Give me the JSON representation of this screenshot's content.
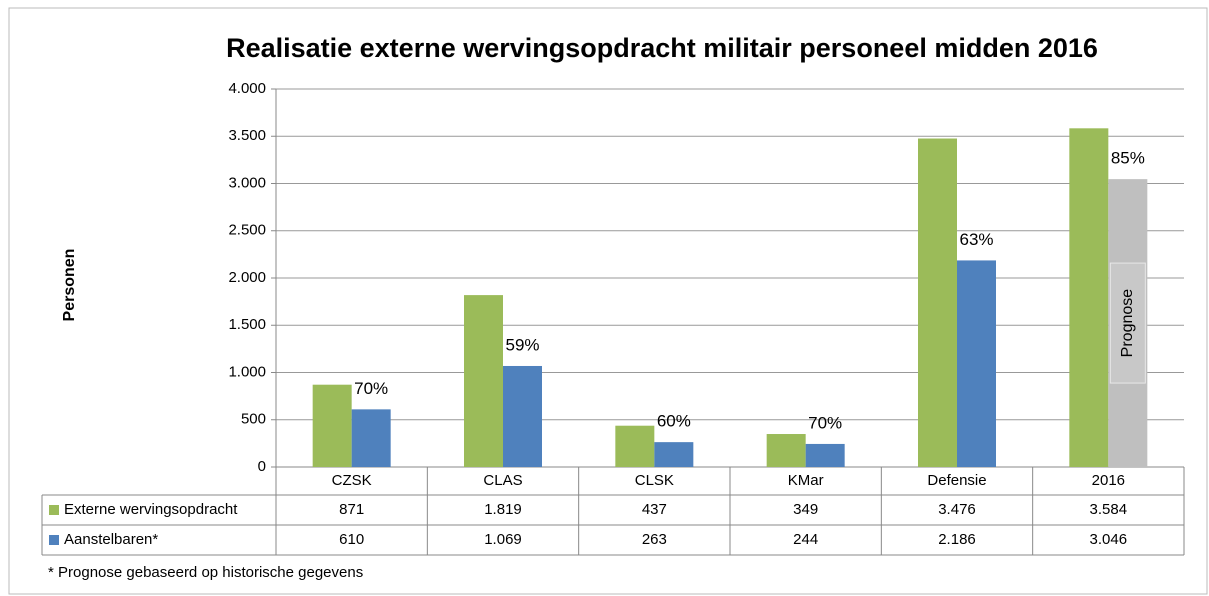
{
  "chart_data": {
    "type": "bar",
    "title": "Realisatie externe wervingsopdracht militair personeel midden 2016",
    "y_label": "Personen",
    "categories": [
      "CZSK",
      "CLAS",
      "CLSK",
      "KMar",
      "Defensie",
      "2016"
    ],
    "series": [
      {
        "name": "Externe wervingsopdracht",
        "color": "#9bbb59",
        "values": [
          871,
          1819,
          437,
          349,
          3476,
          3584
        ],
        "value_labels": [
          "871",
          "1.819",
          "437",
          "349",
          "3.476",
          "3.584"
        ]
      },
      {
        "name": "Aanstelbaren*",
        "color": "#4f81bd",
        "colors": [
          "#4f81bd",
          "#4f81bd",
          "#4f81bd",
          "#4f81bd",
          "#4f81bd",
          "#bfbfbf"
        ],
        "values": [
          610,
          1069,
          263,
          244,
          2186,
          3046
        ],
        "value_labels": [
          "610",
          "1.069",
          "263",
          "244",
          "2.186",
          "3.046"
        ]
      }
    ],
    "percentages": [
      70,
      59,
      60,
      70,
      63,
      85
    ],
    "percentage_labels": [
      "70%",
      "59%",
      "60%",
      "70%",
      "63%",
      "85%"
    ],
    "bar_note": "Prognose",
    "footnote": "* Prognose gebaseerd op historische gegevens",
    "ylim": [
      0,
      4000
    ],
    "yticks": [
      0,
      500,
      {
        "value": 1000,
        "label": "1.000"
      },
      {
        "value": 1500,
        "label": "1.500"
      },
      {
        "value": 2000,
        "label": "2.000"
      },
      {
        "value": 2500,
        "label": "2.500"
      },
      {
        "value": 3000,
        "label": "3.000"
      },
      {
        "value": 3500,
        "label": "3.500"
      },
      {
        "value": 4000,
        "label": "4.000"
      }
    ],
    "grid": true
  }
}
